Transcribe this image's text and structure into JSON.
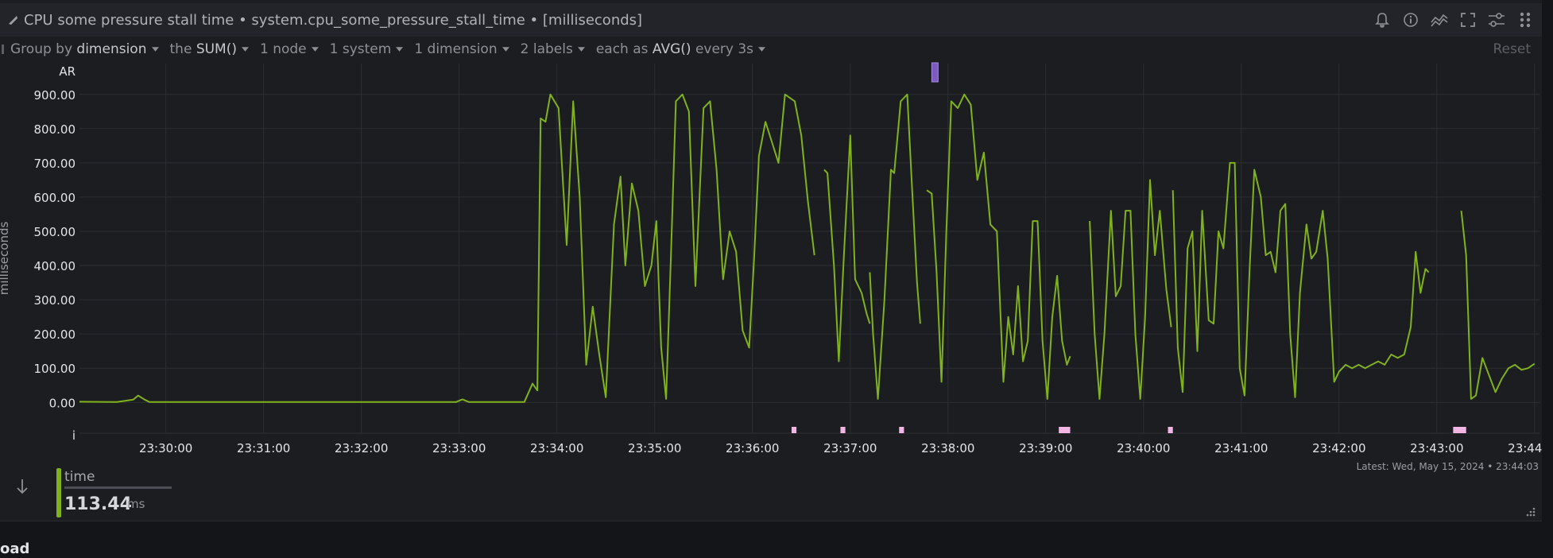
{
  "header": {
    "title": "CPU some pressure stall time • system.cpu_some_pressure_stall_time • [milliseconds]",
    "icons": [
      "bell-icon",
      "info-icon",
      "chart-type-icon",
      "fullscreen-icon",
      "settings-icon",
      "drag-icon"
    ]
  },
  "toolbar": {
    "group_by_prefix": "Group by",
    "group_by_value": "dimension",
    "agg_prefix": "the",
    "agg_value": "SUM()",
    "nodes": "1 node",
    "systems": "1 system",
    "dimensions": "1 dimension",
    "labels": "2 labels",
    "each_prefix": "each as",
    "each_value": "AVG()",
    "every": "every 3s",
    "reset": "Reset"
  },
  "legend": {
    "dimension_name": "time",
    "value": "113.44",
    "unit": "ms",
    "latest": "Latest:  Wed, May 15, 2024 • 23:44:03"
  },
  "next_section": "oad",
  "chart_data": {
    "type": "line",
    "ylabel": "milliseconds",
    "yticks": [
      "900.00",
      "800.00",
      "700.00",
      "600.00",
      "500.00",
      "400.00",
      "300.00",
      "200.00",
      "100.00",
      "0.00"
    ],
    "ylim": [
      -90,
      990
    ],
    "top_label": "AR",
    "bottom_label": "i",
    "xlim": [
      "23:29:07",
      "23:44:03"
    ],
    "xticks": [
      "23:30:00",
      "23:31:00",
      "23:32:00",
      "23:33:00",
      "23:34:00",
      "23:35:00",
      "23:36:00",
      "23:37:00",
      "23:38:00",
      "23:39:00",
      "23:40:00",
      "23:41:00",
      "23:42:00",
      "23:43:00",
      "23:44:00"
    ],
    "grid": true,
    "line_color": "#7fb21c",
    "series": [
      {
        "name": "time",
        "points": [
          [
            "23:29:07",
            2
          ],
          [
            "23:29:30",
            1
          ],
          [
            "23:29:40",
            8
          ],
          [
            "23:29:43",
            20
          ],
          [
            "23:29:47",
            8
          ],
          [
            "23:29:50",
            1
          ],
          [
            "23:30:30",
            1
          ],
          [
            "23:31:00",
            1
          ],
          [
            "23:31:30",
            1
          ],
          [
            "23:32:00",
            1
          ],
          [
            "23:32:30",
            1
          ],
          [
            "23:32:58",
            1
          ],
          [
            "23:33:02",
            9
          ],
          [
            "23:33:06",
            1
          ],
          [
            "23:33:40",
            1
          ],
          [
            "23:33:45",
            55
          ],
          [
            "23:33:48",
            35
          ],
          [
            "23:33:50",
            830
          ],
          [
            "23:33:53",
            820
          ],
          [
            "23:33:56",
            900
          ],
          [
            "23:34:01",
            860
          ],
          [
            "23:34:06",
            460
          ],
          [
            "23:34:10",
            880
          ],
          [
            "23:34:14",
            600
          ],
          [
            "23:34:18",
            110
          ],
          [
            "23:34:22",
            280
          ],
          [
            "23:34:26",
            140
          ],
          [
            "23:34:30",
            15
          ],
          [
            "23:34:35",
            520
          ],
          [
            "23:34:39",
            660
          ],
          [
            "23:34:42",
            400
          ],
          [
            "23:34:46",
            640
          ],
          [
            "23:34:50",
            560
          ],
          [
            "23:34:54",
            340
          ],
          [
            "23:34:58",
            400
          ],
          [
            "23:35:01",
            530
          ],
          [
            "23:35:04",
            160
          ],
          [
            "23:35:07",
            10
          ],
          [
            "23:35:10",
            430
          ],
          [
            "23:35:13",
            880
          ],
          [
            "23:35:17",
            900
          ],
          [
            "23:35:21",
            850
          ],
          [
            "23:35:25",
            340
          ],
          [
            "23:35:30",
            860
          ],
          [
            "23:35:34",
            880
          ],
          [
            "23:35:38",
            680
          ],
          [
            "23:35:42",
            360
          ],
          [
            "23:35:46",
            500
          ],
          [
            "23:35:50",
            440
          ],
          [
            "23:35:54",
            210
          ],
          [
            "23:35:58",
            160
          ],
          [
            "23:36:01",
            420
          ],
          [
            "23:36:04",
            720
          ],
          [
            "23:36:08",
            820
          ],
          [
            "23:36:12",
            760
          ],
          [
            "23:36:16",
            700
          ],
          [
            "23:36:20",
            900
          ],
          [
            "23:36:26",
            880
          ],
          [
            "23:36:30",
            780
          ],
          [
            "23:36:34",
            590
          ],
          [
            "23:36:38",
            430
          ]
        ]
      },
      {
        "name": "time-2",
        "points": [
          [
            "23:36:44",
            680
          ],
          [
            "23:36:46",
            670
          ],
          [
            "23:36:50",
            400
          ],
          [
            "23:36:53",
            120
          ],
          [
            "23:36:56",
            420
          ],
          [
            "23:37:00",
            780
          ],
          [
            "23:37:03",
            360
          ],
          [
            "23:37:07",
            320
          ],
          [
            "23:37:10",
            260
          ],
          [
            "23:37:12",
            230
          ]
        ]
      },
      {
        "name": "time-3",
        "points": [
          [
            "23:37:12",
            380
          ],
          [
            "23:37:14",
            200
          ],
          [
            "23:37:17",
            10
          ],
          [
            "23:37:21",
            300
          ],
          [
            "23:37:25",
            680
          ],
          [
            "23:37:27",
            670
          ],
          [
            "23:37:31",
            880
          ],
          [
            "23:37:35",
            900
          ],
          [
            "23:37:38",
            620
          ],
          [
            "23:37:41",
            350
          ],
          [
            "23:37:43",
            230
          ]
        ]
      },
      {
        "name": "time-4",
        "points": [
          [
            "23:37:47",
            620
          ],
          [
            "23:37:50",
            610
          ],
          [
            "23:37:53",
            380
          ],
          [
            "23:37:56",
            60
          ],
          [
            "23:37:59",
            500
          ],
          [
            "23:38:02",
            880
          ],
          [
            "23:38:06",
            860
          ],
          [
            "23:38:10",
            900
          ],
          [
            "23:38:14",
            870
          ],
          [
            "23:38:18",
            650
          ],
          [
            "23:38:22",
            730
          ],
          [
            "23:38:26",
            520
          ],
          [
            "23:38:30",
            500
          ],
          [
            "23:38:34",
            60
          ],
          [
            "23:38:37",
            250
          ],
          [
            "23:38:40",
            140
          ],
          [
            "23:38:43",
            340
          ],
          [
            "23:38:46",
            120
          ],
          [
            "23:38:49",
            180
          ],
          [
            "23:38:52",
            530
          ],
          [
            "23:38:55",
            530
          ],
          [
            "23:38:58",
            180
          ],
          [
            "23:39:01",
            10
          ],
          [
            "23:39:04",
            250
          ],
          [
            "23:39:07",
            370
          ],
          [
            "23:39:10",
            180
          ],
          [
            "23:39:13",
            110
          ],
          [
            "23:39:15",
            135
          ]
        ]
      },
      {
        "name": "time-5",
        "points": [
          [
            "23:39:27",
            530
          ],
          [
            "23:39:30",
            200
          ],
          [
            "23:39:33",
            10
          ],
          [
            "23:39:36",
            200
          ],
          [
            "23:39:40",
            560
          ],
          [
            "23:39:43",
            310
          ],
          [
            "23:39:46",
            340
          ],
          [
            "23:39:49",
            560
          ],
          [
            "23:39:52",
            560
          ],
          [
            "23:39:55",
            200
          ],
          [
            "23:39:58",
            10
          ],
          [
            "23:40:01",
            250
          ],
          [
            "23:40:04",
            650
          ],
          [
            "23:40:07",
            430
          ],
          [
            "23:40:10",
            560
          ],
          [
            "23:40:14",
            330
          ],
          [
            "23:40:17",
            220
          ]
        ]
      },
      {
        "name": "time-6",
        "points": [
          [
            "23:40:18",
            620
          ],
          [
            "23:40:21",
            160
          ],
          [
            "23:40:24",
            30
          ],
          [
            "23:40:27",
            450
          ],
          [
            "23:40:30",
            500
          ],
          [
            "23:40:33",
            150
          ],
          [
            "23:40:36",
            560
          ],
          [
            "23:40:40",
            240
          ],
          [
            "23:40:43",
            230
          ],
          [
            "23:40:46",
            500
          ],
          [
            "23:40:49",
            450
          ],
          [
            "23:40:53",
            700
          ],
          [
            "23:40:56",
            700
          ],
          [
            "23:40:59",
            100
          ],
          [
            "23:41:02",
            20
          ],
          [
            "23:41:05",
            380
          ],
          [
            "23:41:08",
            680
          ],
          [
            "23:41:12",
            600
          ],
          [
            "23:41:15",
            430
          ],
          [
            "23:41:18",
            440
          ],
          [
            "23:41:21",
            380
          ],
          [
            "23:41:24",
            560
          ],
          [
            "23:41:27",
            580
          ],
          [
            "23:41:30",
            200
          ],
          [
            "23:41:33",
            15
          ],
          [
            "23:41:36",
            320
          ],
          [
            "23:41:40",
            520
          ],
          [
            "23:41:43",
            420
          ],
          [
            "23:41:46",
            440
          ],
          [
            "23:41:50",
            560
          ],
          [
            "23:41:53",
            420
          ],
          [
            "23:41:57",
            60
          ],
          [
            "23:42:00",
            90
          ],
          [
            "23:42:04",
            110
          ],
          [
            "23:42:08",
            100
          ],
          [
            "23:42:12",
            110
          ],
          [
            "23:42:16",
            100
          ],
          [
            "23:42:20",
            110
          ],
          [
            "23:42:24",
            120
          ],
          [
            "23:42:28",
            110
          ],
          [
            "23:42:32",
            140
          ],
          [
            "23:42:36",
            130
          ],
          [
            "23:42:40",
            140
          ],
          [
            "23:42:44",
            220
          ],
          [
            "23:42:47",
            440
          ],
          [
            "23:42:50",
            320
          ],
          [
            "23:42:53",
            390
          ],
          [
            "23:42:55",
            380
          ]
        ]
      },
      {
        "name": "time-7",
        "points": [
          [
            "23:43:15",
            560
          ],
          [
            "23:43:18",
            430
          ],
          [
            "23:43:21",
            10
          ],
          [
            "23:43:24",
            20
          ],
          [
            "23:43:28",
            130
          ],
          [
            "23:43:32",
            80
          ],
          [
            "23:43:36",
            30
          ],
          [
            "23:43:40",
            70
          ],
          [
            "23:43:44",
            100
          ],
          [
            "23:43:48",
            110
          ],
          [
            "23:43:52",
            95
          ],
          [
            "23:43:56",
            100
          ],
          [
            "23:44:00",
            113
          ]
        ]
      }
    ],
    "anomaly_markers": [
      {
        "from": "23:36:24",
        "to": "23:36:27"
      },
      {
        "from": "23:36:54",
        "to": "23:36:57"
      },
      {
        "from": "23:37:30",
        "to": "23:37:33"
      },
      {
        "from": "23:39:08",
        "to": "23:39:15"
      },
      {
        "from": "23:40:15",
        "to": "23:40:18"
      },
      {
        "from": "23:43:10",
        "to": "23:43:18"
      }
    ],
    "annotation_marker": {
      "at": "23:37:52"
    }
  }
}
